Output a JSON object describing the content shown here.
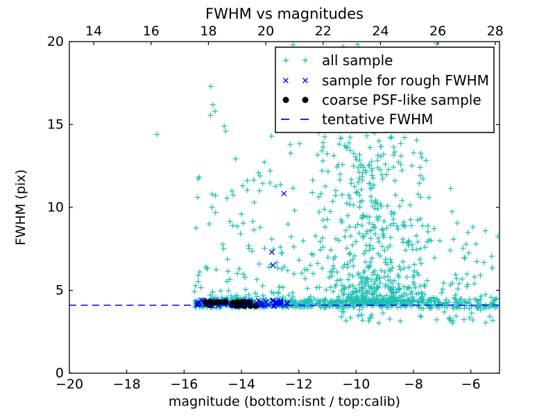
{
  "chart_data": {
    "type": "scatter",
    "title": "FWHM vs magnitudes",
    "xlabel": "magnitude (bottom:isnt / top:calib)",
    "ylabel": "FWHM (pix)",
    "xlim": [
      -20,
      -5
    ],
    "top_xlim": [
      13.15,
      28.15
    ],
    "ylim": [
      0,
      20
    ],
    "grid": false,
    "x_ticks": {
      "values": [
        -20,
        -18,
        -16,
        -14,
        -12,
        -10,
        -8,
        -6
      ],
      "labels": [
        "−20",
        "−18",
        "−16",
        "−14",
        "−12",
        "−10",
        "−8",
        "−6"
      ]
    },
    "top_ticks": {
      "values": [
        14,
        16,
        18,
        20,
        22,
        24,
        26,
        28
      ],
      "labels": [
        "14",
        "16",
        "18",
        "20",
        "22",
        "24",
        "26",
        "28"
      ]
    },
    "y_ticks": {
      "values": [
        0,
        5,
        10,
        15,
        20
      ],
      "labels": [
        "0",
        "5",
        "10",
        "15",
        "20"
      ]
    },
    "seed": 20,
    "legend": {
      "position": "upper right",
      "entries": [
        "all sample",
        "sample for rough FWHM",
        "coarse PSF-like sample",
        "tentative FWHM"
      ]
    },
    "line": {
      "name": "tentative FWHM",
      "y": 4.1,
      "color": "#0000ee",
      "style": "dashed"
    },
    "series": [
      {
        "name": "all sample",
        "marker": "plus",
        "color": "#1fbfb4",
        "size": 4,
        "clusters": [
          {
            "n": 430,
            "x": {
              "dist": "uniform",
              "range": [
                -15.65,
                -8.0
              ]
            },
            "y": {
              "dist": "uniform",
              "range": [
                3.95,
                4.45
              ]
            }
          },
          {
            "n": 95,
            "x": {
              "dist": "uniform",
              "range": [
                -8.0,
                -5.05
              ]
            },
            "y": {
              "dist": "uniform",
              "range": [
                3.9,
                4.5
              ]
            }
          },
          {
            "n": 38,
            "x": {
              "dist": "uniform",
              "range": [
                -10.6,
                -5.1
              ]
            },
            "y": {
              "dist": "uniform",
              "range": [
                3.0,
                3.92
              ]
            }
          },
          {
            "n": 115,
            "x": {
              "dist": "uniform",
              "range": [
                -15.65,
                -12.05
              ]
            },
            "y": {
              "dist": "power",
              "range": [
                4.5,
                13.5
              ],
              "k": 2.4
            }
          },
          {
            "n": 430,
            "x": {
              "dist": "gauss",
              "mean": -9.4,
              "sd": 1.0,
              "clip": [
                -12.1,
                -6.3
              ]
            },
            "y": {
              "dist": "power",
              "range": [
                4.3,
                13.5
              ],
              "k": 2.3
            }
          },
          {
            "n": 130,
            "x": {
              "dist": "gauss",
              "mean": -9.6,
              "sd": 1.35,
              "clip": [
                -12.3,
                -5.9
              ]
            },
            "y": {
              "dist": "power",
              "range": [
                4.35,
                14.5
              ],
              "k": 1.6
            }
          },
          {
            "n": 60,
            "x": {
              "dist": "gauss",
              "mean": -9.6,
              "sd": 0.95,
              "clip": [
                -11.6,
                -7.4
              ]
            },
            "y": {
              "dist": "uniform",
              "range": [
                13.0,
                17.6
              ]
            }
          },
          {
            "n": 12,
            "x": {
              "dist": "uniform",
              "range": [
                -11.0,
                -8.5
              ]
            },
            "y": {
              "dist": "uniform",
              "range": [
                17.6,
                19.9
              ]
            }
          },
          {
            "n": 48,
            "x": {
              "dist": "uniform",
              "range": [
                -8.1,
                -5.05
              ]
            },
            "y": {
              "dist": "power",
              "range": [
                4.5,
                9.5
              ],
              "k": 2.2
            }
          }
        ],
        "points": [
          [
            -16.95,
            14.4
          ],
          [
            -15.07,
            17.3
          ],
          [
            -15.0,
            16.2
          ],
          [
            -14.92,
            15.8
          ],
          [
            -15.08,
            15.55
          ],
          [
            -14.6,
            14.9
          ],
          [
            -14.55,
            14.6
          ],
          [
            -12.95,
            14.3
          ],
          [
            -12.3,
            13.8
          ],
          [
            -11.5,
            15.4
          ],
          [
            -11.3,
            14.5
          ],
          [
            -11.15,
            13.9
          ],
          [
            -12.2,
            19.8
          ],
          [
            -10.45,
            19.7
          ],
          [
            -9.95,
            19.85
          ],
          [
            -9.9,
            19.6
          ],
          [
            -7.2,
            19.9
          ],
          [
            -10.0,
            18.9
          ],
          [
            -9.3,
            19.2
          ],
          [
            -13.35,
            11.9
          ],
          [
            -13.55,
            10.3
          ],
          [
            -14.0,
            9.6
          ],
          [
            -14.3,
            8.9
          ],
          [
            -13.0,
            12.2
          ]
        ]
      },
      {
        "name": "sample for rough FWHM",
        "marker": "x",
        "color": "#0000ee",
        "size": 3.5,
        "clusters": [
          {
            "n": 72,
            "x": {
              "dist": "uniform",
              "range": [
                -15.65,
                -12.38
              ]
            },
            "y": {
              "dist": "uniform",
              "range": [
                4.02,
                4.42
              ]
            }
          }
        ],
        "points": [
          [
            -12.52,
            10.84
          ],
          [
            -12.94,
            7.3
          ],
          [
            -12.9,
            6.5
          ]
        ]
      },
      {
        "name": "coarse PSF-like sample",
        "marker": "dot",
        "color": "#000000",
        "size": 4.3,
        "clusters": [
          {
            "n": 30,
            "x": {
              "dist": "uniform",
              "range": [
                -15.35,
                -13.37
              ]
            },
            "y": {
              "dist": "uniform",
              "range": [
                4.05,
                4.3
              ]
            }
          }
        ],
        "points": []
      }
    ]
  }
}
